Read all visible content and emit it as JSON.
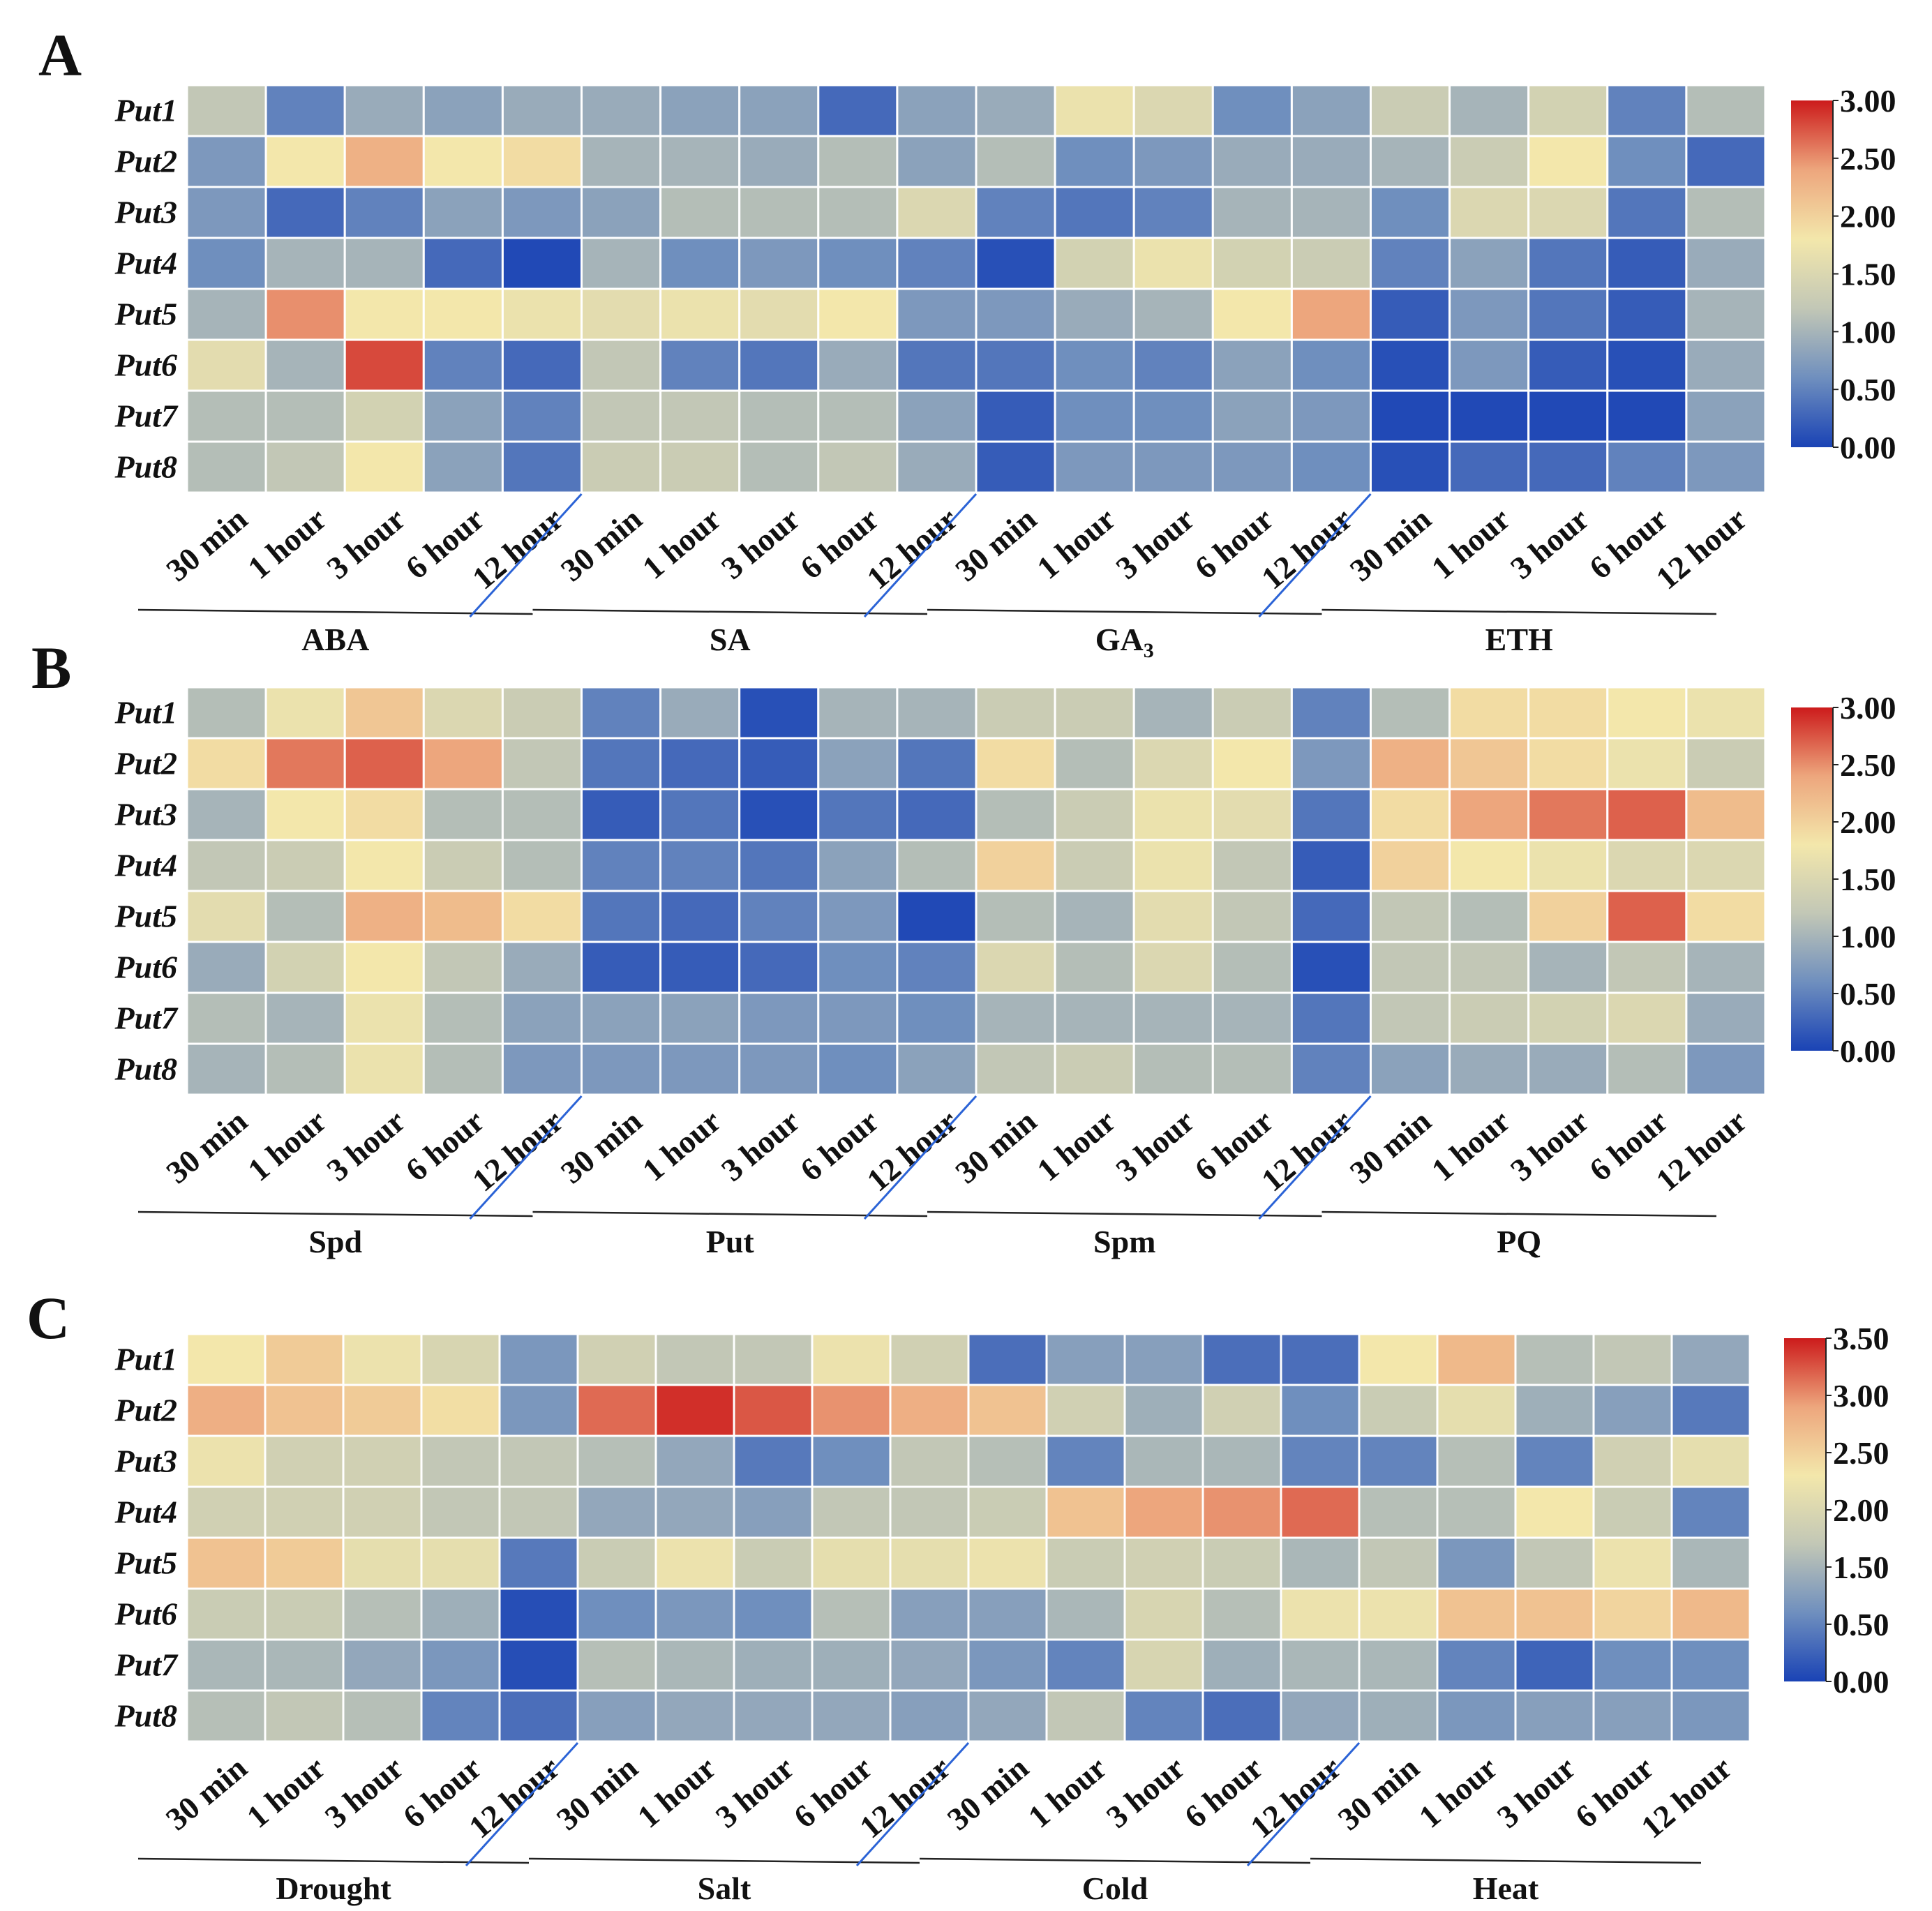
{
  "colors": {
    "scale_stops": [
      "#1a43b5",
      "#6f8fbe",
      "#c2c7b6",
      "#f3e7ab",
      "#eda67d",
      "#cc1b1b"
    ]
  },
  "chart_data": [
    {
      "type": "heatmap",
      "panel": "A",
      "rows": [
        "Put1",
        "Put2",
        "Put3",
        "Put4",
        "Put5",
        "Put6",
        "Put7",
        "Put8"
      ],
      "time_points": [
        "30 min",
        "1 hour",
        "3 hour",
        "6 hour",
        "12 hour"
      ],
      "groups": [
        "ABA",
        "SA",
        "GA",
        "ETH"
      ],
      "group_subscripts": [
        "",
        "",
        "3",
        ""
      ],
      "scale_range": [
        0,
        3
      ],
      "scale_ticks": [
        "0.00",
        "0.50",
        "1.00",
        "1.50",
        "2.00",
        "2.50",
        "3.00"
      ],
      "values": [
        [
          1.2,
          0.5,
          0.9,
          0.8,
          0.9,
          0.9,
          0.8,
          0.8,
          0.3,
          0.8,
          0.9,
          1.7,
          1.5,
          0.6,
          0.8,
          1.3,
          1.0,
          1.4,
          0.5,
          1.1
        ],
        [
          0.7,
          1.8,
          2.3,
          1.8,
          1.9,
          1.0,
          1.0,
          0.9,
          1.1,
          0.8,
          1.1,
          0.6,
          0.7,
          0.9,
          0.9,
          1.0,
          1.3,
          1.8,
          0.6,
          0.3
        ],
        [
          0.7,
          0.3,
          0.5,
          0.8,
          0.7,
          0.8,
          1.1,
          1.1,
          1.1,
          1.5,
          0.5,
          0.4,
          0.5,
          1.0,
          1.0,
          0.6,
          1.5,
          1.5,
          0.4,
          1.1
        ],
        [
          0.6,
          1.0,
          1.0,
          0.3,
          0.05,
          1.0,
          0.6,
          0.7,
          0.6,
          0.5,
          0.1,
          1.4,
          1.7,
          1.4,
          1.3,
          0.5,
          0.8,
          0.4,
          0.2,
          0.9
        ],
        [
          1.0,
          2.5,
          1.8,
          1.8,
          1.7,
          1.6,
          1.7,
          1.6,
          1.8,
          0.7,
          0.7,
          0.9,
          1.0,
          1.8,
          2.4,
          0.2,
          0.7,
          0.4,
          0.2,
          1.0
        ],
        [
          1.6,
          1.0,
          2.8,
          0.5,
          0.3,
          1.2,
          0.5,
          0.4,
          0.9,
          0.4,
          0.4,
          0.6,
          0.5,
          0.8,
          0.6,
          0.1,
          0.7,
          0.2,
          0.1,
          0.9
        ],
        [
          1.1,
          1.1,
          1.4,
          0.8,
          0.5,
          1.2,
          1.2,
          1.1,
          1.1,
          0.8,
          0.2,
          0.6,
          0.6,
          0.8,
          0.7,
          0.05,
          0.05,
          0.05,
          0.05,
          0.8
        ],
        [
          1.1,
          1.2,
          1.8,
          0.8,
          0.4,
          1.3,
          1.3,
          1.1,
          1.2,
          0.9,
          0.2,
          0.7,
          0.7,
          0.7,
          0.6,
          0.1,
          0.3,
          0.3,
          0.5,
          0.7
        ]
      ]
    },
    {
      "type": "heatmap",
      "panel": "B",
      "rows": [
        "Put1",
        "Put2",
        "Put3",
        "Put4",
        "Put5",
        "Put6",
        "Put7",
        "Put8"
      ],
      "time_points": [
        "30 min",
        "1 hour",
        "3 hour",
        "6 hour",
        "12 hour"
      ],
      "groups": [
        "Spd",
        "Put",
        "Spm",
        "PQ"
      ],
      "group_subscripts": [
        "",
        "",
        "",
        ""
      ],
      "scale_range": [
        0,
        3
      ],
      "scale_ticks": [
        "0.00",
        "0.50",
        "1.00",
        "1.50",
        "2.00",
        "2.50",
        "3.00"
      ],
      "values": [
        [
          1.1,
          1.7,
          2.1,
          1.5,
          1.3,
          0.5,
          0.9,
          0.1,
          1.0,
          1.0,
          1.3,
          1.3,
          1.0,
          1.3,
          0.5,
          1.1,
          1.9,
          1.9,
          1.8,
          1.7
        ],
        [
          1.9,
          2.6,
          2.7,
          2.4,
          1.2,
          0.4,
          0.3,
          0.2,
          0.8,
          0.4,
          1.9,
          1.1,
          1.5,
          1.8,
          0.7,
          2.3,
          2.1,
          1.9,
          1.7,
          1.3
        ],
        [
          1.0,
          1.8,
          1.9,
          1.1,
          1.1,
          0.2,
          0.4,
          0.1,
          0.4,
          0.3,
          1.1,
          1.3,
          1.7,
          1.6,
          0.4,
          1.9,
          2.4,
          2.6,
          2.7,
          2.2
        ],
        [
          1.2,
          1.3,
          1.8,
          1.3,
          1.1,
          0.5,
          0.5,
          0.4,
          0.8,
          1.1,
          2.0,
          1.3,
          1.7,
          1.2,
          0.2,
          2.0,
          1.8,
          1.7,
          1.5,
          1.5
        ],
        [
          1.6,
          1.1,
          2.3,
          2.2,
          1.9,
          0.4,
          0.3,
          0.5,
          0.7,
          0.05,
          1.1,
          1.0,
          1.6,
          1.2,
          0.3,
          1.2,
          1.1,
          2.0,
          2.7,
          1.9
        ],
        [
          0.9,
          1.4,
          1.8,
          1.2,
          0.9,
          0.2,
          0.2,
          0.3,
          0.6,
          0.5,
          1.5,
          1.1,
          1.5,
          1.1,
          0.1,
          1.2,
          1.2,
          1.0,
          1.2,
          1.0
        ],
        [
          1.1,
          1.0,
          1.7,
          1.1,
          0.8,
          0.8,
          0.8,
          0.7,
          0.7,
          0.6,
          1.0,
          1.0,
          1.0,
          1.0,
          0.4,
          1.2,
          1.3,
          1.4,
          1.5,
          0.9
        ],
        [
          1.0,
          1.1,
          1.7,
          1.1,
          0.7,
          0.7,
          0.7,
          0.7,
          0.6,
          0.8,
          1.2,
          1.3,
          1.1,
          1.1,
          0.5,
          0.8,
          0.9,
          0.9,
          1.1,
          0.7
        ]
      ]
    },
    {
      "type": "heatmap",
      "panel": "C",
      "rows": [
        "Put1",
        "Put2",
        "Put3",
        "Put4",
        "Put5",
        "Put6",
        "Put7",
        "Put8"
      ],
      "time_points": [
        "30 min",
        "1 hour",
        "3 hour",
        "6 hour",
        "12 hour"
      ],
      "groups": [
        "Drought",
        "Salt",
        "Cold",
        "Heat"
      ],
      "group_subscripts": [
        "",
        "",
        "",
        ""
      ],
      "scale_range": [
        0,
        3.5
      ],
      "scale_ticks": [
        "0.00",
        "0.50",
        "1.50",
        "2.00",
        "2.50",
        "3.00",
        "3.50"
      ],
      "values": [
        [
          2.1,
          2.4,
          2.0,
          1.7,
          0.8,
          1.6,
          1.4,
          1.4,
          2.0,
          1.6,
          0.4,
          0.9,
          0.9,
          0.4,
          0.4,
          2.1,
          2.6,
          1.3,
          1.4,
          1.0
        ],
        [
          2.7,
          2.5,
          2.4,
          2.2,
          0.8,
          3.1,
          3.4,
          3.2,
          2.9,
          2.7,
          2.5,
          1.6,
          1.1,
          1.6,
          0.7,
          1.5,
          1.9,
          1.1,
          0.9,
          0.5
        ],
        [
          2.0,
          1.6,
          1.6,
          1.4,
          1.4,
          1.3,
          1.0,
          0.5,
          0.7,
          1.4,
          1.3,
          0.6,
          1.2,
          1.2,
          0.6,
          0.6,
          1.3,
          0.6,
          1.6,
          1.9
        ],
        [
          1.6,
          1.6,
          1.6,
          1.4,
          1.4,
          1.0,
          1.0,
          0.9,
          1.4,
          1.4,
          1.5,
          2.5,
          2.8,
          2.9,
          3.1,
          1.3,
          1.3,
          2.1,
          1.5,
          0.6
        ],
        [
          2.5,
          2.4,
          1.9,
          1.9,
          0.5,
          1.5,
          2.0,
          1.5,
          1.9,
          1.9,
          2.0,
          1.5,
          1.6,
          1.5,
          1.2,
          1.4,
          0.8,
          1.4,
          2.0,
          1.2
        ],
        [
          1.5,
          1.5,
          1.3,
          1.1,
          0.1,
          0.7,
          0.8,
          0.7,
          1.3,
          0.9,
          0.9,
          1.2,
          1.7,
          1.3,
          2.0,
          2.0,
          2.5,
          2.5,
          2.3,
          2.6
        ],
        [
          1.2,
          1.2,
          1.0,
          0.8,
          0.1,
          1.3,
          1.2,
          1.1,
          1.1,
          1.0,
          0.8,
          0.6,
          1.7,
          1.1,
          1.2,
          1.2,
          0.6,
          0.3,
          0.7,
          0.7
        ],
        [
          1.3,
          1.4,
          1.3,
          0.6,
          0.4,
          0.9,
          1.0,
          1.0,
          1.0,
          0.9,
          1.0,
          1.4,
          0.6,
          0.4,
          1.0,
          1.1,
          0.8,
          0.9,
          0.9,
          0.8
        ]
      ]
    }
  ]
}
